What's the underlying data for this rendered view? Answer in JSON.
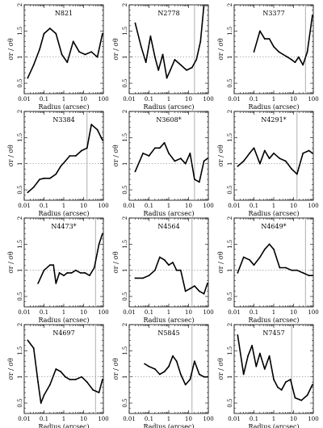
{
  "figure": {
    "x_axis_label": "Radius (arcsec)",
    "y_axis_label": "σr / σθ",
    "x_tick_labels": [
      "0.01",
      "0.1",
      "1",
      "10",
      "100"
    ],
    "y_tick_labels": [
      "0.5",
      "1",
      "1.5",
      "2"
    ]
  },
  "chart_data": [
    {
      "type": "line",
      "title": "N821",
      "xscale": "log",
      "xlim": [
        0.01,
        100
      ],
      "ylim": [
        0.3,
        2.0
      ],
      "reference_line_y": 1.0,
      "vertical_line_x": null,
      "x": [
        0.015,
        0.03,
        0.06,
        0.1,
        0.2,
        0.4,
        0.8,
        1.5,
        3,
        6,
        12,
        25,
        50,
        90
      ],
      "y": [
        0.6,
        0.85,
        1.15,
        1.45,
        1.55,
        1.45,
        1.05,
        0.9,
        1.3,
        1.1,
        1.05,
        1.1,
        1.0,
        1.45
      ]
    },
    {
      "type": "line",
      "title": "N2778",
      "xscale": "log",
      "xlim": [
        0.01,
        100
      ],
      "ylim": [
        0.3,
        2.0
      ],
      "reference_line_y": 1.0,
      "vertical_line_x": 20,
      "x": [
        0.02,
        0.04,
        0.07,
        0.12,
        0.2,
        0.3,
        0.5,
        0.8,
        1.2,
        2,
        4,
        8,
        15,
        25,
        40,
        60
      ],
      "y": [
        1.65,
        1.2,
        0.9,
        1.4,
        1.0,
        0.75,
        1.05,
        0.6,
        0.75,
        0.95,
        0.85,
        0.75,
        0.8,
        0.95,
        1.3,
        2.0
      ]
    },
    {
      "type": "line",
      "title": "N3377",
      "xscale": "log",
      "xlim": [
        0.01,
        100
      ],
      "ylim": [
        0.3,
        2.0
      ],
      "reference_line_y": 1.0,
      "vertical_line_x": 40,
      "x": [
        0.1,
        0.2,
        0.35,
        0.6,
        1,
        1.8,
        3,
        5,
        8,
        12,
        18,
        30,
        50,
        90
      ],
      "y": [
        1.1,
        1.5,
        1.35,
        1.35,
        1.2,
        1.1,
        1.05,
        1.0,
        0.95,
        0.9,
        1.0,
        0.85,
        1.1,
        1.8
      ]
    },
    {
      "type": "line",
      "title": "N3384",
      "xscale": "log",
      "xlim": [
        0.01,
        100
      ],
      "ylim": [
        0.3,
        2.0
      ],
      "reference_line_y": 1.0,
      "vertical_line_x": 15,
      "x": [
        0.015,
        0.03,
        0.06,
        0.1,
        0.2,
        0.4,
        0.7,
        1.2,
        2,
        4,
        8,
        15,
        25,
        50,
        90
      ],
      "y": [
        0.45,
        0.55,
        0.7,
        0.72,
        0.72,
        0.8,
        0.95,
        1.05,
        1.15,
        1.15,
        1.25,
        1.3,
        1.75,
        1.65,
        1.45
      ]
    },
    {
      "type": "line",
      "title": "N3608*",
      "xscale": "log",
      "xlim": [
        0.01,
        100
      ],
      "ylim": [
        0.3,
        2.0
      ],
      "reference_line_y": 1.0,
      "vertical_line_x": 20,
      "x": [
        0.02,
        0.05,
        0.1,
        0.2,
        0.35,
        0.6,
        1,
        2,
        4,
        7,
        12,
        20,
        35,
        60,
        90
      ],
      "y": [
        0.85,
        1.2,
        1.15,
        1.3,
        1.3,
        1.4,
        1.2,
        1.05,
        1.1,
        1.0,
        1.2,
        0.7,
        0.65,
        1.05,
        1.1
      ]
    },
    {
      "type": "line",
      "title": "N4291*",
      "xscale": "log",
      "xlim": [
        0.01,
        100
      ],
      "ylim": [
        0.3,
        2.0
      ],
      "reference_line_y": 1.0,
      "vertical_line_x": 15,
      "x": [
        0.015,
        0.03,
        0.06,
        0.1,
        0.2,
        0.35,
        0.6,
        1,
        2,
        4,
        8,
        15,
        30,
        60,
        90
      ],
      "y": [
        0.95,
        1.05,
        1.2,
        1.3,
        1.0,
        1.25,
        1.1,
        1.2,
        1.1,
        1.05,
        0.9,
        0.8,
        1.2,
        1.25,
        1.2
      ]
    },
    {
      "type": "line",
      "title": "N4473*",
      "xscale": "log",
      "xlim": [
        0.01,
        100
      ],
      "ylim": [
        0.3,
        2.0
      ],
      "reference_line_y": 1.0,
      "vertical_line_x": 40,
      "x": [
        0.05,
        0.1,
        0.2,
        0.3,
        0.4,
        0.6,
        1,
        1.5,
        2.5,
        4,
        7,
        12,
        20,
        35,
        60,
        90
      ],
      "y": [
        0.75,
        1.0,
        1.1,
        1.1,
        0.75,
        0.95,
        0.9,
        0.95,
        0.95,
        1.0,
        0.95,
        0.95,
        0.9,
        1.05,
        1.5,
        1.7
      ]
    },
    {
      "type": "line",
      "title": "N4564",
      "xscale": "log",
      "xlim": [
        0.01,
        100
      ],
      "ylim": [
        0.3,
        2.0
      ],
      "reference_line_y": 1.0,
      "vertical_line_x": 15,
      "x": [
        0.02,
        0.05,
        0.1,
        0.2,
        0.35,
        0.6,
        1,
        1.6,
        2.5,
        4,
        7,
        12,
        20,
        35,
        60,
        90
      ],
      "y": [
        0.85,
        0.85,
        0.9,
        1.0,
        1.25,
        1.2,
        1.1,
        1.15,
        1.0,
        1.0,
        0.6,
        0.65,
        0.7,
        0.6,
        0.55,
        0.75
      ]
    },
    {
      "type": "line",
      "title": "N4649*",
      "xscale": "log",
      "xlim": [
        0.01,
        100
      ],
      "ylim": [
        0.3,
        2.0
      ],
      "reference_line_y": 1.0,
      "vertical_line_x": 40,
      "x": [
        0.015,
        0.03,
        0.06,
        0.1,
        0.2,
        0.35,
        0.6,
        1,
        2,
        4,
        8,
        15,
        30,
        60,
        90
      ],
      "y": [
        0.95,
        1.25,
        1.2,
        1.1,
        1.25,
        1.4,
        1.5,
        1.4,
        1.05,
        1.05,
        1.0,
        1.0,
        0.95,
        0.9,
        0.9
      ]
    },
    {
      "type": "line",
      "title": "N4697",
      "xscale": "log",
      "xlim": [
        0.01,
        100
      ],
      "ylim": [
        0.3,
        2.0
      ],
      "reference_line_y": 1.0,
      "vertical_line_x": 40,
      "x": [
        0.015,
        0.03,
        0.05,
        0.07,
        0.1,
        0.2,
        0.4,
        0.7,
        1.2,
        2,
        4,
        8,
        15,
        30,
        60,
        90
      ],
      "y": [
        1.7,
        1.55,
        0.9,
        0.5,
        0.65,
        0.85,
        1.15,
        1.1,
        1.0,
        0.95,
        0.95,
        1.0,
        0.9,
        0.75,
        0.7,
        0.95
      ]
    },
    {
      "type": "line",
      "title": "N5845",
      "xscale": "log",
      "xlim": [
        0.01,
        100
      ],
      "ylim": [
        0.3,
        2.0
      ],
      "reference_line_y": 1.0,
      "vertical_line_x": 15,
      "x": [
        0.06,
        0.1,
        0.2,
        0.35,
        0.6,
        1,
        1.6,
        2.5,
        4,
        7,
        12,
        20,
        35,
        60,
        90
      ],
      "y": [
        1.25,
        1.2,
        1.15,
        1.05,
        1.1,
        1.2,
        1.4,
        1.3,
        1.05,
        0.85,
        0.95,
        1.3,
        1.05,
        1.0,
        1.0
      ]
    },
    {
      "type": "line",
      "title": "N7457",
      "xscale": "log",
      "xlim": [
        0.01,
        100
      ],
      "ylim": [
        0.3,
        2.0
      ],
      "reference_line_y": 1.0,
      "vertical_line_x": 8,
      "x": [
        0.015,
        0.03,
        0.05,
        0.08,
        0.13,
        0.2,
        0.35,
        0.6,
        1,
        1.6,
        2.5,
        4,
        7,
        12,
        25,
        50,
        90
      ],
      "y": [
        1.8,
        1.05,
        1.4,
        1.6,
        1.2,
        1.45,
        1.15,
        1.4,
        0.95,
        0.8,
        0.75,
        0.9,
        0.95,
        0.6,
        0.55,
        0.65,
        0.85
      ]
    }
  ]
}
